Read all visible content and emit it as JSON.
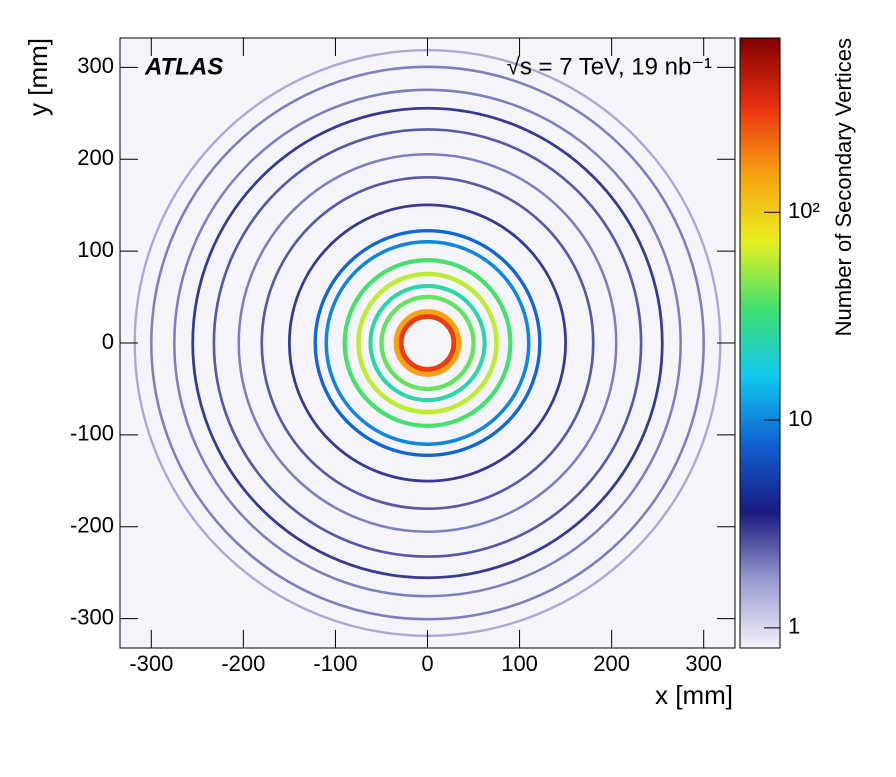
{
  "chart_data": {
    "type": "ring-histogram",
    "annotations": [
      "ATLAS",
      "√s = 7 TeV, 19 nb⁻¹"
    ],
    "xlabel": "x [mm]",
    "ylabel": "y [mm]",
    "zlabel": "Number of Secondary Vertices",
    "xlim": [
      -334,
      334
    ],
    "ylim": [
      -332,
      332
    ],
    "xticks": [
      -300,
      -200,
      -100,
      0,
      100,
      200,
      300
    ],
    "yticks": [
      -300,
      -200,
      -100,
      0,
      100,
      200,
      300
    ],
    "zlim": [
      0.8,
      690
    ],
    "zlog": true,
    "zticks": [
      1,
      10,
      {
        "value": 100,
        "label": "10²"
      }
    ],
    "colorscale": [
      "#f4f2fa",
      "#9a9ad0",
      "#1a1a80",
      "#1060d0",
      "#10c8f0",
      "#40e070",
      "#e8f020",
      "#f8a010",
      "#e83010",
      "#800000"
    ],
    "radius": [
      29,
      34,
      50,
      62,
      75,
      90,
      110,
      122,
      150,
      180,
      205,
      232,
      255,
      275,
      300,
      318
    ],
    "values": [
      300,
      150,
      40,
      25,
      60,
      35,
      10,
      8,
      3,
      2.5,
      2,
      2.5,
      3,
      2,
      2,
      1.5
    ]
  }
}
